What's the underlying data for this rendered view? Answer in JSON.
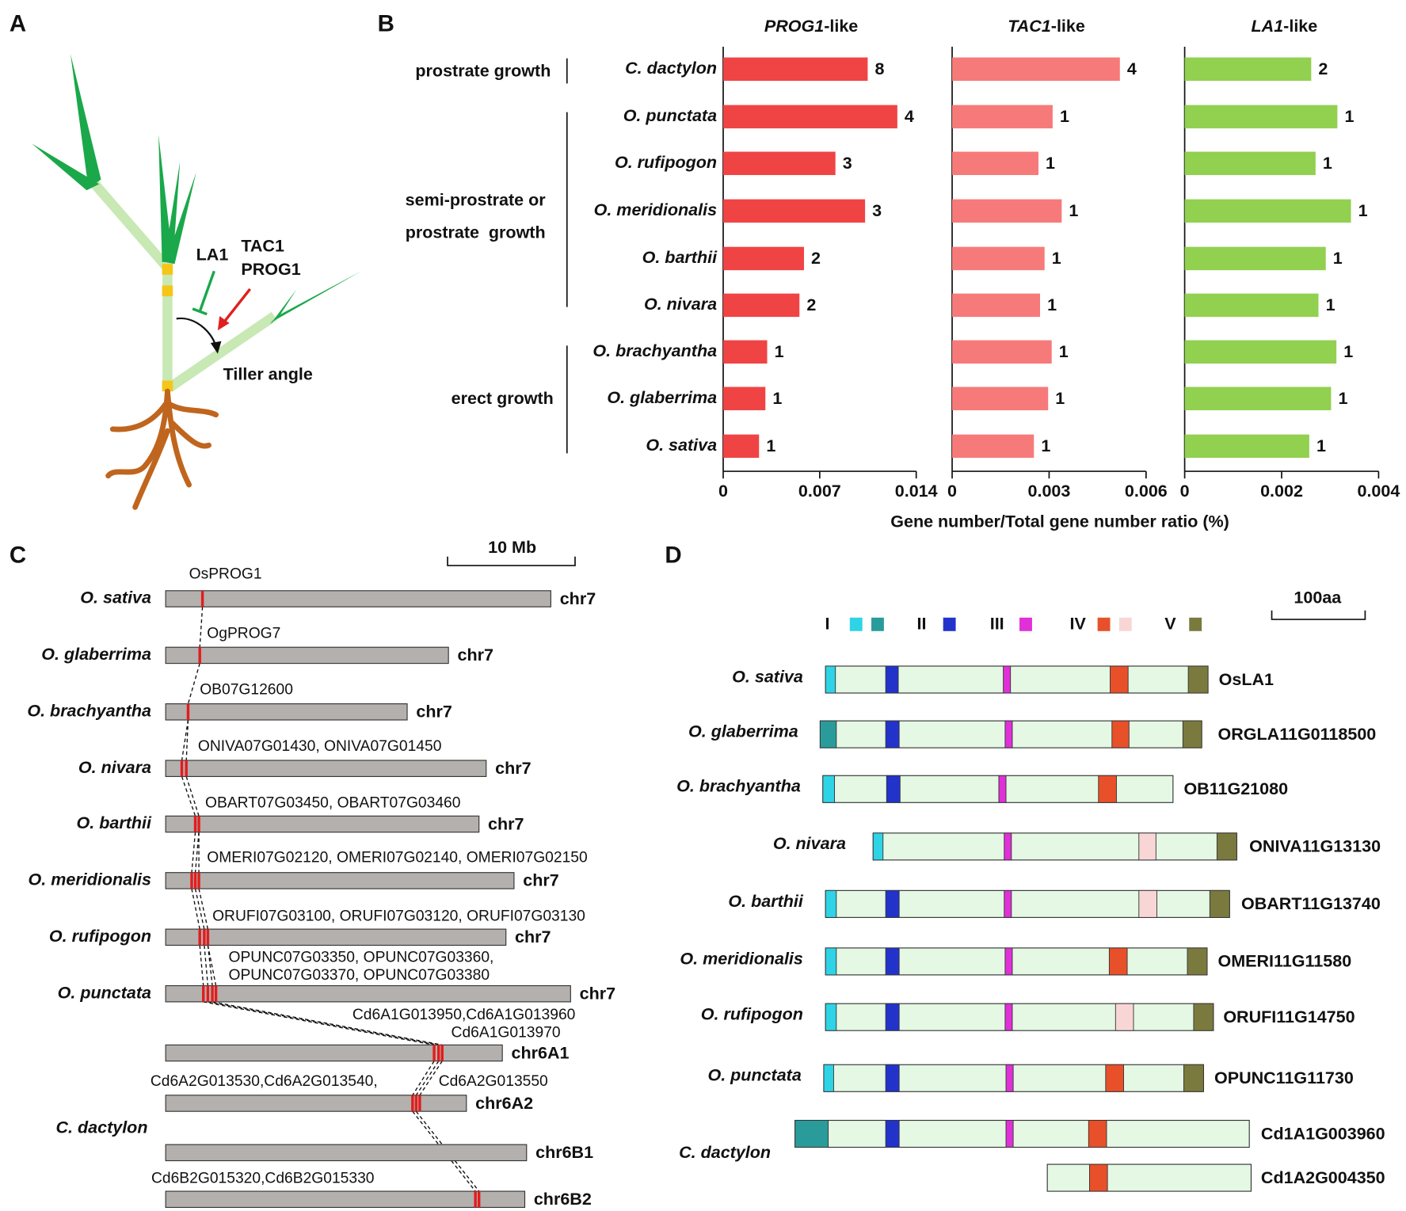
{
  "panel_labels": [
    "A",
    "B",
    "C",
    "D"
  ],
  "panel_a": {
    "labels": [
      "LA1",
      "TAC1",
      "PROG1",
      "Tiller angle"
    ]
  },
  "panel_b": {
    "categories": [
      "C. dactylon",
      "O. punctata",
      "O. rufipogon",
      "O. meridionalis",
      "O. barthii",
      "O. nivara",
      "O. brachyantha",
      "O. glaberrima",
      "O. sativa"
    ],
    "groups": [
      "prostrate growth",
      "semi-prostrate or",
      "prostrate  growth",
      "erect growth"
    ],
    "x_label": "Gene number/Total gene number ratio (%)"
  },
  "chart_data": [
    {
      "type": "bar",
      "title_gene": "PROG1",
      "title_suffix": "-like",
      "color": "#f04444",
      "values": [
        0.01048,
        0.01263,
        0.00814,
        0.01029,
        0.00586,
        0.00553,
        0.00319,
        0.00306,
        0.0026
      ],
      "gene_counts": [
        8,
        4,
        3,
        3,
        2,
        2,
        1,
        1,
        1
      ],
      "xlim": [
        0,
        0.014
      ],
      "xticks": [
        0,
        0.007,
        0.014
      ]
    },
    {
      "type": "bar",
      "title_gene": "TAC1",
      "title_suffix": "-like",
      "color": "#f77a7a",
      "values": [
        0.00519,
        0.00311,
        0.00267,
        0.00339,
        0.00286,
        0.00272,
        0.00308,
        0.00297,
        0.00253
      ],
      "gene_counts": [
        4,
        1,
        1,
        1,
        1,
        1,
        1,
        1,
        1
      ],
      "xlim": [
        0,
        0.006
      ],
      "xticks": [
        0,
        0.003,
        0.006
      ]
    },
    {
      "type": "bar",
      "title_gene": "LA1",
      "title_suffix": "-like",
      "color": "#92d050",
      "values": [
        0.00261,
        0.00315,
        0.0027,
        0.00343,
        0.00291,
        0.00276,
        0.00313,
        0.00302,
        0.00257
      ],
      "gene_counts": [
        2,
        1,
        1,
        1,
        1,
        1,
        1,
        1,
        1
      ],
      "xlim": [
        0,
        0.004
      ],
      "xticks": [
        0,
        0.002,
        0.004
      ]
    }
  ],
  "panel_c": {
    "scale": "10 Mb",
    "group_species": "C. dactylon",
    "rows": [
      {
        "species": "O. sativa",
        "chr": "chr7",
        "genes": [
          "OsPROG1"
        ]
      },
      {
        "species": "O. glaberrima",
        "chr": "chr7",
        "genes": [
          "OgPROG7"
        ]
      },
      {
        "species": "O. brachyantha",
        "chr": "chr7",
        "genes": [
          "OB07G12600"
        ]
      },
      {
        "species": "O. nivara",
        "chr": "chr7",
        "genes": [
          "ONIVA07G01430, ONIVA07G01450"
        ]
      },
      {
        "species": "O. barthii",
        "chr": "chr7",
        "genes": [
          "OBART07G03450, OBART07G03460"
        ]
      },
      {
        "species": "O. meridionalis",
        "chr": "chr7",
        "genes": [
          "OMERI07G02120, OMERI07G02140, OMERI07G02150"
        ]
      },
      {
        "species": "O. rufipogon",
        "chr": "chr7",
        "genes": [
          "ORUFI07G03100, ORUFI07G03120, ORUFI07G03130"
        ]
      },
      {
        "species": "O. punctata",
        "chr": "chr7",
        "genes": [
          "OPUNC07G03350, OPUNC07G03360,",
          "OPUNC07G03370, OPUNC07G03380"
        ]
      },
      {
        "chr": "chr6A1",
        "genes": [
          "Cd6A1G013950,Cd6A1G013960",
          "Cd6A1G013970"
        ]
      },
      {
        "chr": "chr6A2",
        "genes": [
          "Cd6A2G013530,Cd6A2G013540,",
          "Cd6A2G013550"
        ]
      },
      {
        "chr": "chr6B1"
      },
      {
        "chr": "chr6B2",
        "genes": [
          "Cd6B2G015320,Cd6B2G015330"
        ]
      }
    ]
  },
  "panel_d": {
    "legend": [
      "I",
      "II",
      "III",
      "IV",
      "V"
    ],
    "scale": "100aa",
    "group_species": "C. dactylon",
    "rows": [
      {
        "species": "O. sativa",
        "gene": "OsLA1"
      },
      {
        "species": "O. glaberrima",
        "gene": "ORGLA11G0118500"
      },
      {
        "species": "O. brachyantha",
        "gene": "OB11G21080"
      },
      {
        "species": "O. nivara",
        "gene": "ONIVA11G13130"
      },
      {
        "species": "O. barthii",
        "gene": "OBART11G13740"
      },
      {
        "species": "O. meridionalis",
        "gene": "OMERI11G11580"
      },
      {
        "species": "O. rufipogon",
        "gene": "ORUFI11G14750"
      },
      {
        "species": "O. punctata",
        "gene": "OPUNC11G11730"
      },
      {
        "gene": "Cd1A1G003960"
      },
      {
        "gene": "Cd1A2G004350"
      }
    ]
  }
}
